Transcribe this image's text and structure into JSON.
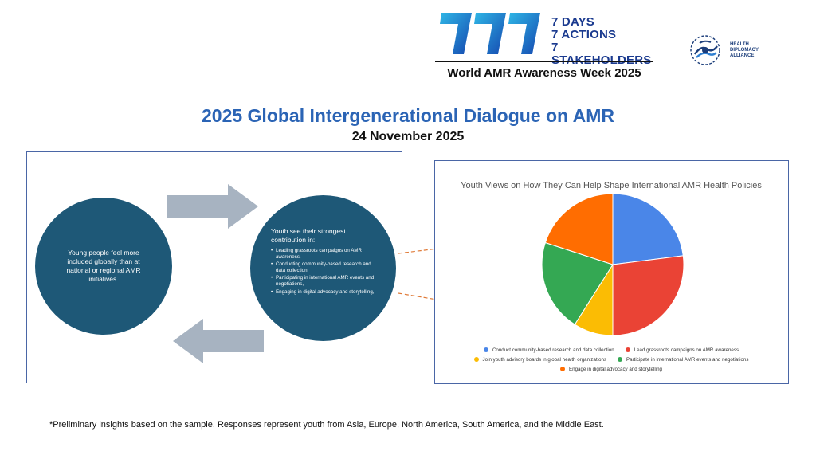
{
  "header": {
    "brand_mark": "777",
    "brand_lines": [
      "7 DAYS",
      "7 ACTIONS",
      "7 STAKEHOLDERS"
    ],
    "brand_week": "World AMR Awareness Week 2025",
    "partner_lines": [
      "HEALTH",
      "DIPLOMACY",
      "ALLIANCE"
    ]
  },
  "title": "2025 Global Intergenerational Dialogue on AMR",
  "date": "24 November 2025",
  "left_panel": {
    "left_circle_text": "Young people feel more included globally than at national or regional AMR initiatives.",
    "right_circle_heading": "Youth see their strongest contribution in:",
    "right_circle_items": [
      "Leading grassroots campaigns on AMR awareness,",
      "Conducting community-based research and data collection,",
      "Participating in international AMR events and negotiations,",
      "Engaging in digital advocacy and storytelling,"
    ]
  },
  "chart_data": {
    "type": "pie",
    "title": "Youth Views on How They Can Help Shape International AMR Health Policies",
    "slices": [
      {
        "label": "Conduct community-based research and data collection",
        "value": 23,
        "color": "#4a86e8"
      },
      {
        "label": "Lead grassroots campaigns on AMR awareness",
        "value": 27,
        "color": "#ea4335"
      },
      {
        "label": "Join youth advisory boards in global health organizations",
        "value": 9,
        "color": "#fbbc04"
      },
      {
        "label": "Participate in international AMR events and negotiations",
        "value": 21,
        "color": "#34a853"
      },
      {
        "label": "Engage in digital advocacy and storytelling",
        "value": 20,
        "color": "#ff6d01"
      }
    ],
    "legend": "bottom"
  },
  "colors": {
    "circle": "#1e5877",
    "arrow": "#a7b3c1",
    "title": "#2b64b5",
    "connector": "#e07b39",
    "panel_border": "#4a66a6"
  },
  "footnote": "*Preliminary insights based on the sample. Responses represent youth from Asia, Europe, North America, South America, and the Middle East."
}
